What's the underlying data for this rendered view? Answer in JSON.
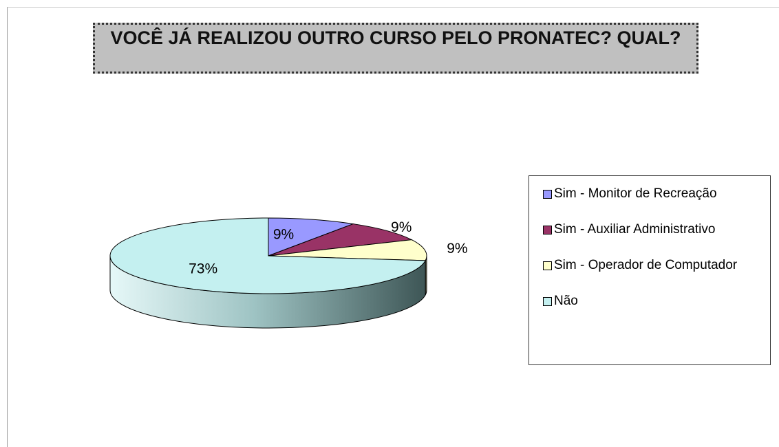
{
  "chart_data": {
    "type": "pie",
    "title": "VOCÊ JÁ REALIZOU OUTRO CURSO PELO PRONATEC? QUAL?",
    "categories": [
      "Sim - Monitor de Recreação",
      "Sim - Auxiliar Administrativo",
      "Sim - Operador de Computador",
      "Não"
    ],
    "values": [
      9,
      9,
      9,
      73
    ],
    "value_labels": [
      "9%",
      "9%",
      "9%",
      "73%"
    ],
    "colors": [
      "#9999ff",
      "#993366",
      "#ffffcc",
      "#c4f0f0"
    ],
    "legend": "right"
  }
}
